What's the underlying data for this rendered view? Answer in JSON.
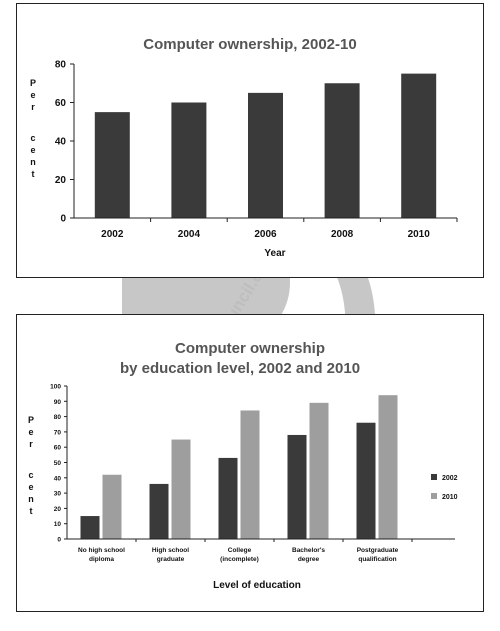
{
  "watermark": {
    "text": "www.takeIELTS.britishcouncil.org",
    "color": "#9a9a9a"
  },
  "chart_data": [
    {
      "type": "bar",
      "title": "Computer ownership, 2002-10",
      "xlabel": "Year",
      "ylabel": "Per cent",
      "ylim": [
        0,
        80
      ],
      "yticks": [
        0,
        20,
        40,
        60,
        80
      ],
      "categories": [
        "2002",
        "2004",
        "2006",
        "2008",
        "2010"
      ],
      "values": [
        55,
        60,
        65,
        70,
        75
      ],
      "bar_color": "#3a3a3a",
      "grid": false
    },
    {
      "type": "bar",
      "title": "Computer ownership",
      "subtitle": "by education level, 2002 and 2010",
      "xlabel": "Level of education",
      "ylabel": "Per cent",
      "ylim": [
        0,
        100
      ],
      "yticks": [
        0,
        10,
        20,
        30,
        40,
        50,
        60,
        70,
        80,
        90,
        100
      ],
      "categories": [
        [
          "No high school",
          "diploma"
        ],
        [
          "High school",
          "graduate"
        ],
        [
          "College",
          "(incomplete)"
        ],
        [
          "Bachelor's",
          "degree"
        ],
        [
          "Postgraduate",
          "qualification"
        ]
      ],
      "series": [
        {
          "name": "2002",
          "values": [
            15,
            36,
            53,
            68,
            76
          ],
          "color": "#3a3a3a"
        },
        {
          "name": "2010",
          "values": [
            42,
            65,
            84,
            89,
            94
          ],
          "color": "#9e9e9e"
        }
      ],
      "legend": "right",
      "grid": false
    }
  ]
}
